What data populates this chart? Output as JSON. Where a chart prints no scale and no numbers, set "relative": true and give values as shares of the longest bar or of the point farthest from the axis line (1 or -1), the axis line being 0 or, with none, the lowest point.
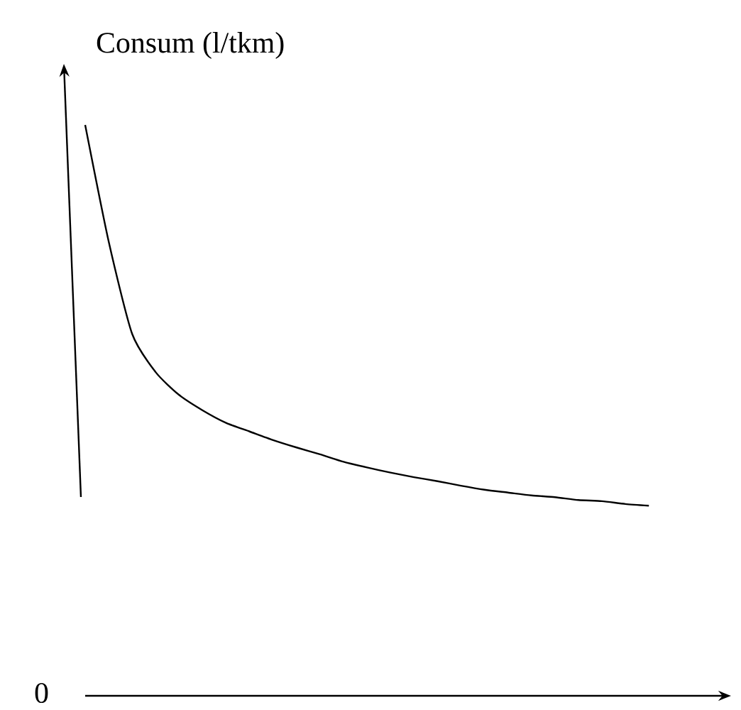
{
  "chart_data": {
    "type": "line",
    "relative": true,
    "ylabel": "Consum (l/tkm)",
    "annotations": [
      "0"
    ],
    "color": "#000000",
    "marker": "none",
    "line_style": "solid",
    "categories": [
      null,
      null,
      null,
      null,
      null,
      null,
      null,
      null,
      null,
      null,
      null,
      null,
      null,
      null,
      null,
      null,
      null,
      null,
      null,
      null,
      null,
      null,
      null,
      null,
      null
    ],
    "values": [
      1.0,
      0.796,
      0.634,
      0.567,
      0.527,
      0.5,
      0.478,
      0.463,
      0.448,
      0.435,
      0.423,
      0.41,
      0.4,
      0.391,
      0.383,
      0.376,
      0.368,
      0.361,
      0.356,
      0.351,
      0.348,
      0.343,
      0.341,
      0.336,
      0.333
    ]
  }
}
